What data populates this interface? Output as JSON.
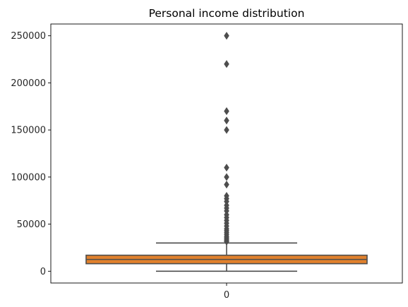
{
  "chart_data": {
    "type": "box",
    "title": "Personal income distribution",
    "xlabel": "",
    "ylabel": "",
    "categories": [
      "0"
    ],
    "ylim": [
      -12500,
      262500
    ],
    "y_ticks": [
      0,
      50000,
      100000,
      150000,
      200000,
      250000
    ],
    "y_tick_labels": [
      "0",
      "50000",
      "100000",
      "150000",
      "200000",
      "250000"
    ],
    "x_tick_labels": [
      "0"
    ],
    "grid": false,
    "box": {
      "whisker_low": 0,
      "q1": 8000,
      "median": 12500,
      "q3": 17000,
      "whisker_high": 30000
    },
    "outliers": [
      250000,
      220000,
      170000,
      160000,
      150000,
      110000,
      100000,
      92000,
      80000,
      77000,
      74000,
      70000,
      67000,
      64000,
      60000,
      57000,
      54000,
      51000,
      48000,
      45000,
      43000,
      41000,
      39000,
      37000,
      35500,
      34000,
      32500,
      31500
    ],
    "colors": {
      "box_fill": "#e1812c",
      "line": "#4d4d4d"
    }
  }
}
